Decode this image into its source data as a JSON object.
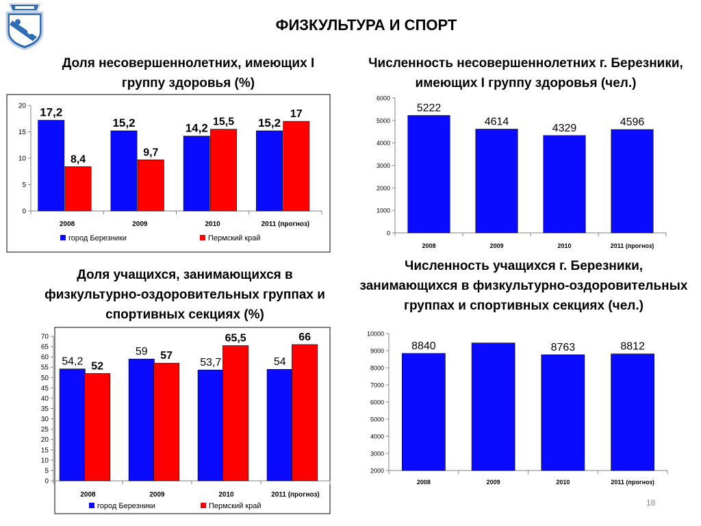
{
  "page": {
    "title": "ФИЗКУЛЬТУРА И СПОРТ",
    "page_number": "18"
  },
  "colors": {
    "blue": "#0a0aff",
    "red": "#ff0000"
  },
  "chart_data": [
    {
      "type": "bar",
      "title": "Доля несовершеннолетних, имеющих I группу здоровья (%)",
      "categories": [
        "2008",
        "2009",
        "2010",
        "2011 (прогноз)"
      ],
      "series": [
        {
          "name": "город Березники",
          "values": [
            17.2,
            15.2,
            14.2,
            15.2
          ],
          "labels": [
            "17,2",
            "15,2",
            "14,2",
            "15,2"
          ]
        },
        {
          "name": "Пермский край",
          "values": [
            8.4,
            9.7,
            15.5,
            17
          ],
          "labels": [
            "8,4",
            "9,7",
            "15,5",
            "17"
          ]
        }
      ],
      "ylim": [
        0,
        20
      ],
      "yticks": [
        "0",
        "5",
        "10",
        "15",
        "20"
      ],
      "grid": false,
      "legend": "bottom"
    },
    {
      "type": "bar",
      "title": "Численность несовершеннолетних г. Березники, имеющих I группу здоровья (чел.)",
      "categories": [
        "2008",
        "2009",
        "2010",
        "2011 (прогноз)"
      ],
      "series": [
        {
          "values": [
            5222,
            4614,
            4329,
            4596
          ],
          "labels": [
            "5222",
            "4614",
            "4329",
            "4596"
          ]
        }
      ],
      "ylim": [
        0,
        6000
      ],
      "yticks": [
        "0",
        "1000",
        "2000",
        "3000",
        "4000",
        "5000",
        "6000"
      ],
      "grid": false
    },
    {
      "type": "bar",
      "title": "Доля учащихся, занимающихся в физкультурно-оздоровительных группах и спортивных секциях (%)",
      "categories": [
        "2008",
        "2009",
        "2010",
        "2011 (прогноз)"
      ],
      "series": [
        {
          "name": "город Березники",
          "values": [
            54.2,
            59,
            53.7,
            54
          ],
          "labels": [
            "54,2",
            "59",
            "53,7",
            "54"
          ]
        },
        {
          "name": "Пермский край",
          "values": [
            52,
            57,
            65.5,
            66
          ],
          "labels": [
            "52",
            "57",
            "65,5",
            "66"
          ]
        }
      ],
      "ylim": [
        0,
        70
      ],
      "yticks": [
        "0",
        "5",
        "10",
        "15",
        "20",
        "25",
        "30",
        "35",
        "40",
        "45",
        "50",
        "55",
        "60",
        "65",
        "70"
      ],
      "grid": false,
      "legend": "bottom"
    },
    {
      "type": "bar",
      "title": "Численность учащихся г. Березники, занимающихся в физкультурно-оздоровительных группах и спортивных секциях (чел.)",
      "categories": [
        "2008",
        "2009",
        "2010",
        "2011 (прогноз)"
      ],
      "series": [
        {
          "values": [
            8840,
            9450,
            8763,
            8812
          ],
          "labels": [
            "8840",
            "",
            "8763",
            "8812"
          ]
        }
      ],
      "ylim": [
        2000,
        10000
      ],
      "yticks": [
        "2000",
        "3000",
        "4000",
        "5000",
        "6000",
        "7000",
        "8000",
        "9000",
        "10000"
      ],
      "grid": false
    }
  ]
}
